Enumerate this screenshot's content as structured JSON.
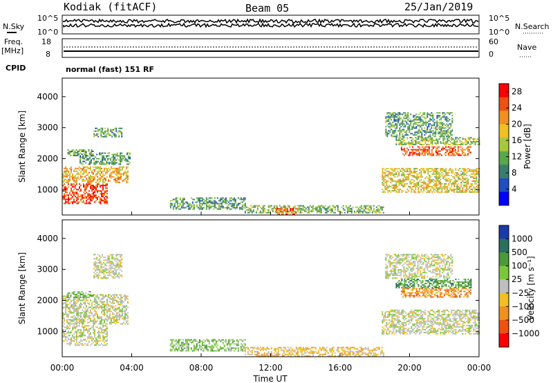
{
  "header": {
    "station": "Kodiak (fitACF)",
    "beam": "Beam 05",
    "date": "25/Jan/2019"
  },
  "side_labels": {
    "nsky": "N.Sky",
    "nsearch": "N.Search",
    "freq": "Freq.",
    "freq_unit": "[MHz]",
    "nave": "Nave",
    "cpid": "CPID"
  },
  "noise_panel": {
    "left_ticks": [
      "10^5",
      "10^0"
    ],
    "right_ticks": [
      "10^5",
      "10^0"
    ]
  },
  "freq_panel": {
    "left_ticks": [
      "18",
      "8"
    ],
    "right_ticks": [
      "60",
      "0"
    ]
  },
  "cpid_text": "normal (fast) 151 RF",
  "colors": {
    "power": [
      "#0000ff",
      "#1f4fc0",
      "#3a7d6f",
      "#5aa84a",
      "#a8c83c",
      "#f0c020",
      "#f09020",
      "#f05010",
      "#ff0000"
    ],
    "velocity": [
      "#1a3aa8",
      "#2a6f5f",
      "#4a9a3a",
      "#7ac83a",
      "#bfbfbf",
      "#f0c020",
      "#f09020",
      "#f05010",
      "#ff0000"
    ]
  },
  "chart_data": [
    {
      "type": "heatmap",
      "title": "Power",
      "xlabel": "Time UT",
      "ylabel": "Slant Range [km]",
      "x_ticks": [
        "00:00",
        "04:00",
        "08:00",
        "12:00",
        "16:00",
        "20:00",
        "00:00"
      ],
      "xlim_hours": [
        0,
        24
      ],
      "y_ticks": [
        1000,
        2000,
        3000,
        4000
      ],
      "ylim": [
        180,
        4600
      ],
      "colorbar": {
        "label": "Power [dB]",
        "ticks": [
          4,
          8,
          12,
          16,
          20,
          24,
          28
        ],
        "range": [
          0,
          30
        ]
      },
      "regions": [
        {
          "t0": 0.0,
          "t1": 2.6,
          "r0": 550,
          "r1": 1200,
          "level": 27
        },
        {
          "t0": 0.0,
          "t1": 3.8,
          "r0": 1250,
          "r1": 1750,
          "level": 20
        },
        {
          "t0": 1.0,
          "t1": 3.9,
          "r0": 1800,
          "r1": 2200,
          "level": 10
        },
        {
          "t0": 0.3,
          "t1": 1.8,
          "r0": 2100,
          "r1": 2300,
          "level": 10
        },
        {
          "t0": 1.8,
          "t1": 3.4,
          "r0": 2700,
          "r1": 3000,
          "level": 10
        },
        {
          "t0": 6.2,
          "t1": 10.5,
          "r0": 350,
          "r1": 750,
          "level": 10
        },
        {
          "t0": 10.5,
          "t1": 18.5,
          "r0": 250,
          "r1": 500,
          "level": 12
        },
        {
          "t0": 12.3,
          "t1": 13.5,
          "r0": 200,
          "r1": 400,
          "level": 26
        },
        {
          "t0": 18.4,
          "t1": 24.0,
          "r0": 900,
          "r1": 1700,
          "level": 18
        },
        {
          "t0": 19.5,
          "t1": 23.5,
          "r0": 2100,
          "r1": 2400,
          "level": 26
        },
        {
          "t0": 18.6,
          "t1": 22.5,
          "r0": 2700,
          "r1": 3500,
          "level": 10
        },
        {
          "t0": 19.2,
          "t1": 24.0,
          "r0": 2450,
          "r1": 2700,
          "level": 14
        }
      ]
    },
    {
      "type": "heatmap",
      "title": "Velocity",
      "xlabel": "Time UT",
      "ylabel": "Slant Range [km]",
      "x_ticks": [
        "00:00",
        "04:00",
        "08:00",
        "12:00",
        "16:00",
        "20:00",
        "00:00"
      ],
      "xlim_hours": [
        0,
        24
      ],
      "y_ticks": [
        1000,
        2000,
        3000,
        4000
      ],
      "ylim": [
        180,
        4600
      ],
      "colorbar": {
        "label": "Velocity [m s⁻¹]",
        "ticks": [
          1000,
          500,
          100,
          25,
          -25,
          -100,
          -500,
          -1000
        ]
      },
      "regions": [
        {
          "t0": 0.0,
          "t1": 2.6,
          "r0": 550,
          "r1": 1200,
          "level": 4
        },
        {
          "t0": 0.0,
          "t1": 3.8,
          "r0": 1250,
          "r1": 2200,
          "level": 4
        },
        {
          "t0": 0.3,
          "t1": 1.8,
          "r0": 2100,
          "r1": 2300,
          "level": 3
        },
        {
          "t0": 1.8,
          "t1": 3.4,
          "r0": 2700,
          "r1": 3500,
          "level": 4
        },
        {
          "t0": 6.2,
          "t1": 10.5,
          "r0": 350,
          "r1": 750,
          "level": 3
        },
        {
          "t0": 10.5,
          "t1": 18.5,
          "r0": 200,
          "r1": 500,
          "level": 5
        },
        {
          "t0": 18.4,
          "t1": 24.0,
          "r0": 900,
          "r1": 1700,
          "level": 4
        },
        {
          "t0": 19.5,
          "t1": 23.5,
          "r0": 2100,
          "r1": 2400,
          "level": 6
        },
        {
          "t0": 19.2,
          "t1": 23.5,
          "r0": 2400,
          "r1": 2700,
          "level": 2
        },
        {
          "t0": 18.6,
          "t1": 22.5,
          "r0": 2700,
          "r1": 3500,
          "level": 4
        }
      ]
    }
  ]
}
